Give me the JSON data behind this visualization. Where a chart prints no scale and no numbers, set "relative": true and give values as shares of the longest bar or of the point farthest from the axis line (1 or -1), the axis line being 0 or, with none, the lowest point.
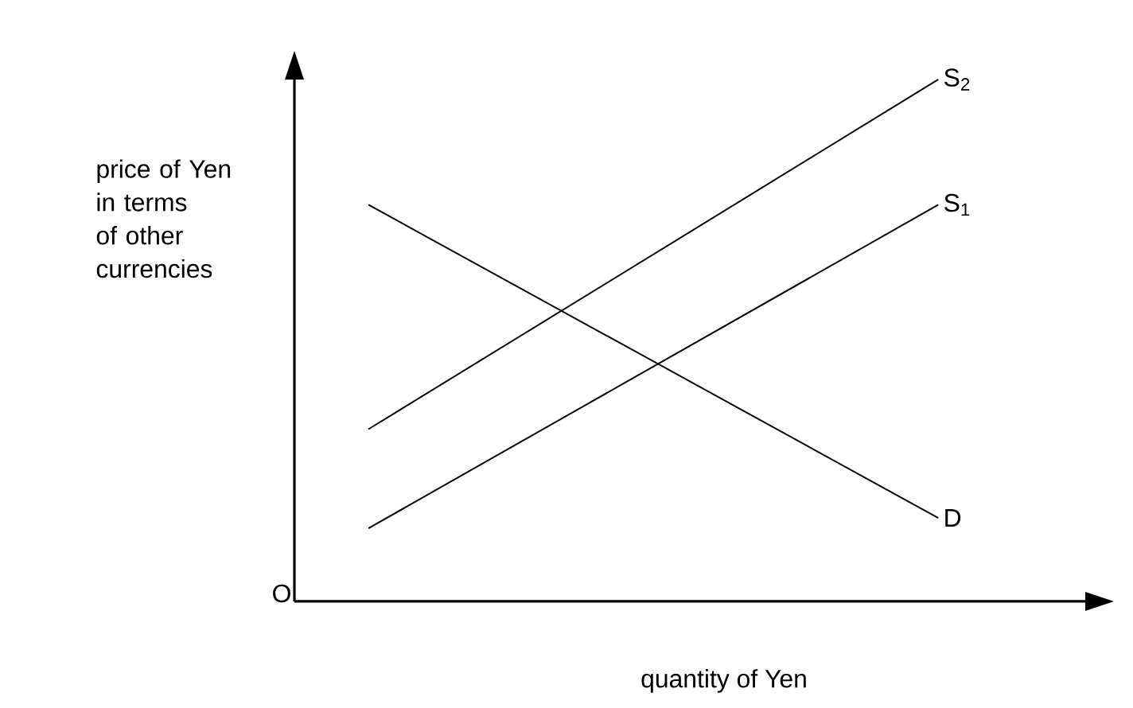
{
  "chart_data": {
    "type": "line",
    "relative": true,
    "xlabel": "quantity of Yen",
    "ylabel": "price of Yen in terms of other currencies",
    "annotations": [
      "O"
    ],
    "categories": [
      null,
      null
    ],
    "marker": "none",
    "line_style": "solid",
    "series": [
      {
        "name": "S$_{2}$",
        "color": "#000000",
        "values": [
          0.33,
          1
        ]
      },
      {
        "name": "S$_{1}$",
        "color": "#000000",
        "values": [
          0.14,
          0.76
        ]
      },
      {
        "name": "D",
        "color": "#000000",
        "values": [
          0.76,
          0.16
        ]
      }
    ]
  }
}
